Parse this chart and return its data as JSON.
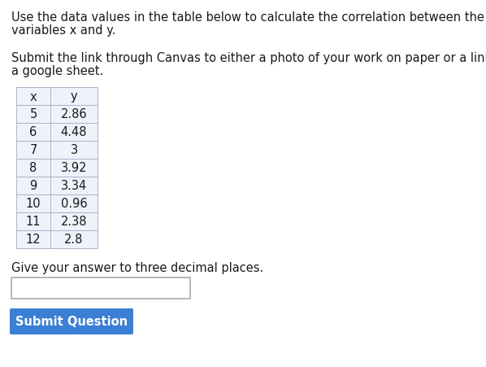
{
  "text_line1": "Use the data values in the table below to calculate the correlation between the",
  "text_line2": "variables x and y.",
  "text_line3": "Submit the link through Canvas to either a photo of your work on paper or a link to",
  "text_line4": "a google sheet.",
  "table_headers": [
    "x",
    "y"
  ],
  "table_data": [
    [
      "5",
      "2.86"
    ],
    [
      "6",
      "4.48"
    ],
    [
      "7",
      "3"
    ],
    [
      "8",
      "3.92"
    ],
    [
      "9",
      "3.34"
    ],
    [
      "10",
      "0.96"
    ],
    [
      "11",
      "2.38"
    ],
    [
      "12",
      "2.8"
    ]
  ],
  "answer_label": "Give your answer to three decimal places.",
  "button_text": "Submit Question",
  "button_color": "#3b7fd4",
  "button_text_color": "#ffffff",
  "background_color": "#ffffff",
  "text_color": "#1a1a1a",
  "cell_bg": "#eef3fb",
  "header_bg": "#eef3fb",
  "font_size": 10.5,
  "table_font_size": 10.5
}
